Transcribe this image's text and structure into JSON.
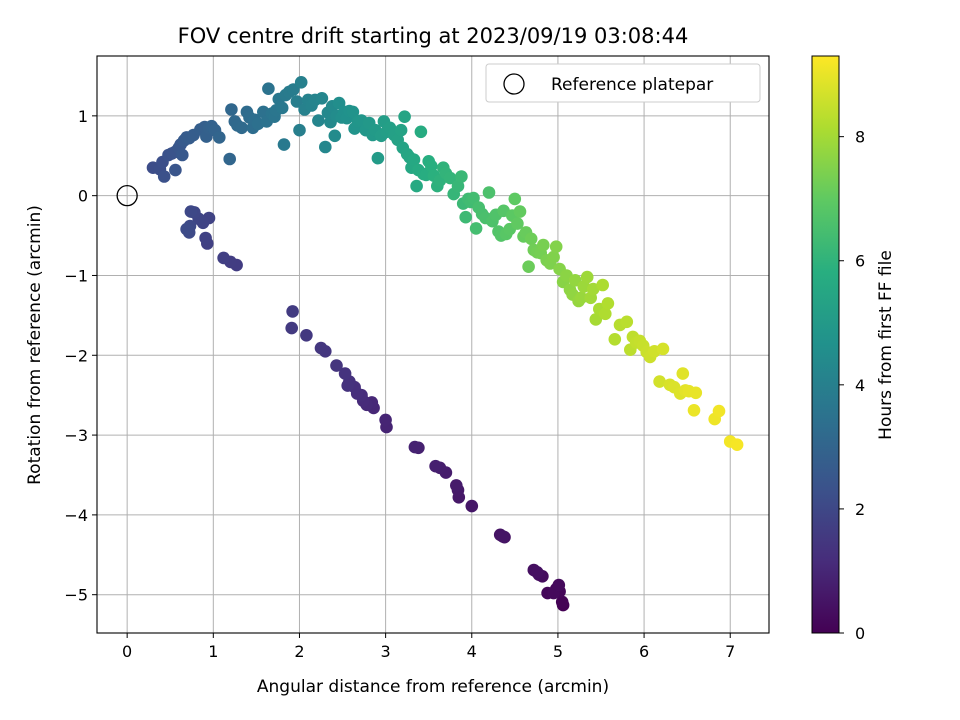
{
  "chart_data": {
    "type": "scatter",
    "title": "FOV centre drift starting at 2023/09/19 03:08:44",
    "xlabel": "Angular distance from reference (arcmin)",
    "ylabel": "Rotation from reference (arcmin)",
    "xlim": [
      -0.35,
      7.45
    ],
    "ylim": [
      -5.48,
      1.75
    ],
    "xticks": [
      0,
      1,
      2,
      3,
      4,
      5,
      6,
      7
    ],
    "yticks": [
      -5,
      -4,
      -3,
      -2,
      -1,
      0,
      1
    ],
    "grid": true,
    "legend": {
      "position": "upper right",
      "entries": [
        "Reference platepar"
      ]
    },
    "colorbar": {
      "label": "Hours from first FF file",
      "min": 0,
      "max": 9.3,
      "ticks": [
        0,
        2,
        4,
        6,
        8
      ],
      "colormap": "viridis"
    },
    "reference_point": {
      "x": 0,
      "y": 0
    },
    "series": [
      {
        "points": [
          [
            5.06,
            -5.13
          ],
          [
            5.05,
            -5.09
          ],
          [
            4.98,
            -4.93
          ],
          [
            5.02,
            -4.96
          ],
          [
            4.88,
            -4.98
          ],
          [
            4.95,
            -4.98
          ],
          [
            5.01,
            -4.88
          ],
          [
            4.82,
            -4.77
          ],
          [
            4.78,
            -4.75
          ],
          [
            4.72,
            -4.69
          ],
          [
            4.76,
            -4.72
          ],
          [
            4.38,
            -4.28
          ],
          [
            4.33,
            -4.25
          ],
          [
            4.36,
            -4.27
          ],
          [
            4.0,
            -3.89
          ],
          [
            3.85,
            -3.78
          ],
          [
            3.84,
            -3.69
          ],
          [
            3.82,
            -3.63
          ],
          [
            3.7,
            -3.47
          ],
          [
            3.63,
            -3.41
          ],
          [
            3.58,
            -3.39
          ],
          [
            3.38,
            -3.16
          ],
          [
            3.34,
            -3.15
          ],
          [
            3.01,
            -2.9
          ],
          [
            3.0,
            -2.81
          ],
          [
            2.86,
            -2.66
          ],
          [
            2.84,
            -2.59
          ],
          [
            2.78,
            -2.62
          ],
          [
            2.74,
            -2.57
          ],
          [
            2.72,
            -2.5
          ],
          [
            2.67,
            -2.48
          ],
          [
            2.64,
            -2.4
          ],
          [
            2.58,
            -2.33
          ],
          [
            2.56,
            -2.38
          ],
          [
            2.53,
            -2.23
          ],
          [
            2.43,
            -2.13
          ],
          [
            2.3,
            -1.95
          ],
          [
            2.25,
            -1.91
          ],
          [
            2.08,
            -1.75
          ],
          [
            1.91,
            -1.66
          ],
          [
            1.92,
            -1.45
          ],
          [
            1.27,
            -0.87
          ],
          [
            1.2,
            -0.83
          ],
          [
            1.12,
            -0.78
          ],
          [
            0.93,
            -0.6
          ],
          [
            0.91,
            -0.53
          ],
          [
            0.95,
            -0.28
          ],
          [
            0.88,
            -0.34
          ],
          [
            0.83,
            -0.29
          ],
          [
            0.78,
            -0.21
          ],
          [
            0.74,
            -0.2
          ],
          [
            0.73,
            -0.38
          ],
          [
            0.72,
            -0.46
          ],
          [
            0.69,
            -0.42
          ],
          [
            0.3,
            0.35
          ],
          [
            0.38,
            0.33
          ],
          [
            0.41,
            0.42
          ],
          [
            0.43,
            0.24
          ],
          [
            0.48,
            0.51
          ],
          [
            0.52,
            0.53
          ],
          [
            0.56,
            0.55
          ],
          [
            0.56,
            0.32
          ],
          [
            0.6,
            0.6
          ],
          [
            0.62,
            0.64
          ],
          [
            0.64,
            0.51
          ],
          [
            0.66,
            0.69
          ],
          [
            0.69,
            0.73
          ],
          [
            0.72,
            0.72
          ],
          [
            0.77,
            0.76
          ],
          [
            0.85,
            0.83
          ],
          [
            0.9,
            0.86
          ],
          [
            0.92,
            0.74
          ],
          [
            0.95,
            0.85
          ],
          [
            0.98,
            0.87
          ],
          [
            1.02,
            0.82
          ],
          [
            1.07,
            0.73
          ],
          [
            1.19,
            0.46
          ],
          [
            1.21,
            1.08
          ],
          [
            1.25,
            0.93
          ],
          [
            1.28,
            0.88
          ],
          [
            1.33,
            0.85
          ],
          [
            1.39,
            1.05
          ],
          [
            1.42,
            0.98
          ],
          [
            1.46,
            0.85
          ],
          [
            1.48,
            0.95
          ],
          [
            1.52,
            0.9
          ],
          [
            1.58,
            1.05
          ],
          [
            1.62,
            0.93
          ],
          [
            1.64,
            1.34
          ],
          [
            1.68,
            1.03
          ],
          [
            1.71,
            0.99
          ],
          [
            1.73,
            1.07
          ],
          [
            1.76,
            1.21
          ],
          [
            1.8,
            1.1
          ],
          [
            1.82,
            0.64
          ],
          [
            1.84,
            1.26
          ],
          [
            1.88,
            1.3
          ],
          [
            1.93,
            1.33
          ],
          [
            1.97,
            1.18
          ],
          [
            2.0,
            0.82
          ],
          [
            2.02,
            1.42
          ],
          [
            2.06,
            1.08
          ],
          [
            2.1,
            1.2
          ],
          [
            2.14,
            1.13
          ],
          [
            2.18,
            1.2
          ],
          [
            2.22,
            0.94
          ],
          [
            2.26,
            1.22
          ],
          [
            2.3,
            0.61
          ],
          [
            2.33,
            1.04
          ],
          [
            2.36,
            0.92
          ],
          [
            2.38,
            1.12
          ],
          [
            2.41,
            0.75
          ],
          [
            2.43,
            1.0
          ],
          [
            2.46,
            1.16
          ],
          [
            2.49,
            0.98
          ],
          [
            2.52,
            1.05
          ],
          [
            2.55,
            0.97
          ],
          [
            2.58,
            1.06
          ],
          [
            2.62,
            1.05
          ],
          [
            2.64,
            0.84
          ],
          [
            2.68,
            0.93
          ],
          [
            2.72,
            0.94
          ],
          [
            2.77,
            0.82
          ],
          [
            2.81,
            0.91
          ],
          [
            2.85,
            0.76
          ],
          [
            2.88,
            0.82
          ],
          [
            2.91,
            0.47
          ],
          [
            2.95,
            0.75
          ],
          [
            2.98,
            0.93
          ],
          [
            3.01,
            0.8
          ],
          [
            3.05,
            0.85
          ],
          [
            3.1,
            0.76
          ],
          [
            3.14,
            0.7
          ],
          [
            3.18,
            0.82
          ],
          [
            3.2,
            0.6
          ],
          [
            3.22,
            0.99
          ],
          [
            3.25,
            0.52
          ],
          [
            3.28,
            0.48
          ],
          [
            3.3,
            0.35
          ],
          [
            3.33,
            0.45
          ],
          [
            3.36,
            0.12
          ],
          [
            3.38,
            0.32
          ],
          [
            3.41,
            0.8
          ],
          [
            3.44,
            0.27
          ],
          [
            3.47,
            0.26
          ],
          [
            3.5,
            0.43
          ],
          [
            3.53,
            0.37
          ],
          [
            3.56,
            0.25
          ],
          [
            3.6,
            0.12
          ],
          [
            3.63,
            0.19
          ],
          [
            3.67,
            0.35
          ],
          [
            3.7,
            0.28
          ],
          [
            3.75,
            0.22
          ],
          [
            3.79,
            0.02
          ],
          [
            3.84,
            0.12
          ],
          [
            3.88,
            0.24
          ],
          [
            3.9,
            -0.1
          ],
          [
            3.93,
            -0.27
          ],
          [
            3.96,
            -0.04
          ],
          [
            3.99,
            -0.08
          ],
          [
            4.02,
            -0.03
          ],
          [
            4.05,
            -0.41
          ],
          [
            4.08,
            -0.15
          ],
          [
            4.12,
            -0.23
          ],
          [
            4.16,
            -0.28
          ],
          [
            4.2,
            0.04
          ],
          [
            4.24,
            -0.32
          ],
          [
            4.28,
            -0.24
          ],
          [
            4.31,
            -0.45
          ],
          [
            4.34,
            -0.5
          ],
          [
            4.37,
            -0.19
          ],
          [
            4.4,
            -0.48
          ],
          [
            4.44,
            -0.42
          ],
          [
            4.47,
            -0.25
          ],
          [
            4.5,
            -0.04
          ],
          [
            4.53,
            -0.35
          ],
          [
            4.56,
            -0.2
          ],
          [
            4.6,
            -0.51
          ],
          [
            4.63,
            -0.46
          ],
          [
            4.66,
            -0.89
          ],
          [
            4.69,
            -0.54
          ],
          [
            4.72,
            -0.68
          ],
          [
            4.76,
            -0.71
          ],
          [
            4.8,
            -0.72
          ],
          [
            4.83,
            -0.62
          ],
          [
            4.87,
            -0.81
          ],
          [
            4.91,
            -0.85
          ],
          [
            4.95,
            -0.77
          ],
          [
            4.98,
            -0.64
          ],
          [
            5.02,
            -0.92
          ],
          [
            5.06,
            -1.08
          ],
          [
            5.1,
            -1.0
          ],
          [
            5.14,
            -1.18
          ],
          [
            5.17,
            -1.24
          ],
          [
            5.2,
            -1.06
          ],
          [
            5.24,
            -1.32
          ],
          [
            5.27,
            -1.28
          ],
          [
            5.3,
            -1.14
          ],
          [
            5.34,
            -1.02
          ],
          [
            5.38,
            -1.28
          ],
          [
            5.41,
            -1.17
          ],
          [
            5.44,
            -1.55
          ],
          [
            5.48,
            -1.42
          ],
          [
            5.52,
            -1.12
          ],
          [
            5.55,
            -1.48
          ],
          [
            5.58,
            -1.35
          ],
          [
            5.66,
            -1.8
          ],
          [
            5.72,
            -1.62
          ],
          [
            5.8,
            -1.58
          ],
          [
            5.84,
            -1.93
          ],
          [
            5.87,
            -1.77
          ],
          [
            5.91,
            -1.84
          ],
          [
            5.95,
            -1.82
          ],
          [
            5.99,
            -1.88
          ],
          [
            6.03,
            -1.96
          ],
          [
            6.07,
            -2.02
          ],
          [
            6.12,
            -1.95
          ],
          [
            6.18,
            -2.33
          ],
          [
            6.22,
            -1.92
          ],
          [
            6.3,
            -2.37
          ],
          [
            6.35,
            -2.4
          ],
          [
            6.42,
            -2.48
          ],
          [
            6.45,
            -2.23
          ],
          [
            6.48,
            -2.44
          ],
          [
            6.52,
            -2.45
          ],
          [
            6.6,
            -2.47
          ],
          [
            6.58,
            -2.69
          ],
          [
            6.82,
            -2.8
          ],
          [
            6.87,
            -2.7
          ],
          [
            7.0,
            -3.08
          ],
          [
            7.08,
            -3.12
          ]
        ]
      }
    ]
  }
}
